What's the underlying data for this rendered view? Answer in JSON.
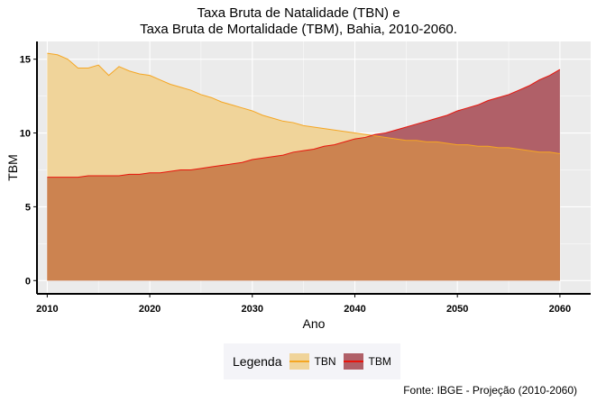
{
  "chart_data": {
    "type": "area",
    "title": "Taxa Bruta de Natalidade (TBN) e",
    "subtitle": "Taxa Bruta de Mortalidade (TBM), Bahia, 2010-2060.",
    "xlabel": "Ano",
    "ylabel": "TBM",
    "xlim": [
      2009,
      2063
    ],
    "ylim": [
      -0.9,
      16.2
    ],
    "xticks": [
      2010,
      2020,
      2030,
      2040,
      2050,
      2060
    ],
    "yticks": [
      0,
      5,
      10,
      15
    ],
    "grid": true,
    "legend_position": "bottom",
    "legend_title": "Legenda",
    "x": [
      2010,
      2011,
      2012,
      2013,
      2014,
      2015,
      2016,
      2017,
      2018,
      2019,
      2020,
      2021,
      2022,
      2023,
      2024,
      2025,
      2026,
      2027,
      2028,
      2029,
      2030,
      2031,
      2032,
      2033,
      2034,
      2035,
      2036,
      2037,
      2038,
      2039,
      2040,
      2041,
      2042,
      2043,
      2044,
      2045,
      2046,
      2047,
      2048,
      2049,
      2050,
      2051,
      2052,
      2053,
      2054,
      2055,
      2056,
      2057,
      2058,
      2059,
      2060
    ],
    "series": [
      {
        "name": "TBN",
        "color": "#f5a623",
        "fill": "#f0d49a",
        "values": [
          15.4,
          15.3,
          15.0,
          14.4,
          14.4,
          14.6,
          13.9,
          14.5,
          14.2,
          14.0,
          13.9,
          13.6,
          13.3,
          13.1,
          12.9,
          12.6,
          12.4,
          12.1,
          11.9,
          11.7,
          11.5,
          11.2,
          11.0,
          10.8,
          10.7,
          10.5,
          10.4,
          10.3,
          10.2,
          10.1,
          10.0,
          9.9,
          9.8,
          9.7,
          9.6,
          9.5,
          9.5,
          9.4,
          9.4,
          9.3,
          9.2,
          9.2,
          9.1,
          9.1,
          9.0,
          9.0,
          8.9,
          8.8,
          8.7,
          8.7,
          8.6
        ]
      },
      {
        "name": "TBM",
        "color": "#e8150c",
        "fill": "#b06068",
        "values": [
          7.0,
          7.0,
          7.0,
          7.0,
          7.1,
          7.1,
          7.1,
          7.1,
          7.2,
          7.2,
          7.3,
          7.3,
          7.4,
          7.5,
          7.5,
          7.6,
          7.7,
          7.8,
          7.9,
          8.0,
          8.2,
          8.3,
          8.4,
          8.5,
          8.7,
          8.8,
          8.9,
          9.1,
          9.2,
          9.4,
          9.6,
          9.7,
          9.9,
          10.0,
          10.2,
          10.4,
          10.6,
          10.8,
          11.0,
          11.2,
          11.5,
          11.7,
          11.9,
          12.2,
          12.4,
          12.6,
          12.9,
          13.2,
          13.6,
          13.9,
          14.3
        ]
      }
    ],
    "overlap_fill": "#cc8350"
  },
  "caption": "Fonte: IBGE - Projeção (2010-2060)",
  "colors": {
    "panel_bg": "#ebebeb",
    "grid": "#ffffff",
    "legend_bg": "#f4f4f8"
  }
}
